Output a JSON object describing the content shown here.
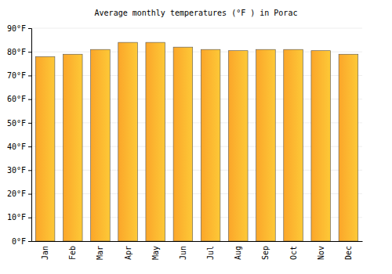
{
  "chart_data": {
    "type": "bar",
    "title": "Average monthly temperatures (°F ) in Porac",
    "categories": [
      "Jan",
      "Feb",
      "Mar",
      "Apr",
      "May",
      "Jun",
      "Jul",
      "Aug",
      "Sep",
      "Oct",
      "Nov",
      "Dec"
    ],
    "values": [
      78,
      79,
      81,
      84,
      84,
      82,
      81,
      80.5,
      81,
      81,
      80.5,
      79
    ],
    "color": "#fba62a",
    "ylim": [
      0,
      90
    ],
    "yticks": [
      {
        "value": 0,
        "label": "0°F"
      },
      {
        "value": 10,
        "label": "10°F"
      },
      {
        "value": 20,
        "label": "20°F"
      },
      {
        "value": 30,
        "label": "30°F"
      },
      {
        "value": 40,
        "label": "40°F"
      },
      {
        "value": 50,
        "label": "50°F"
      },
      {
        "value": 60,
        "label": "60°F"
      },
      {
        "value": 70,
        "label": "70°F"
      },
      {
        "value": 80,
        "label": "80°F"
      },
      {
        "value": 90,
        "label": "90°F"
      }
    ],
    "grid": true
  }
}
